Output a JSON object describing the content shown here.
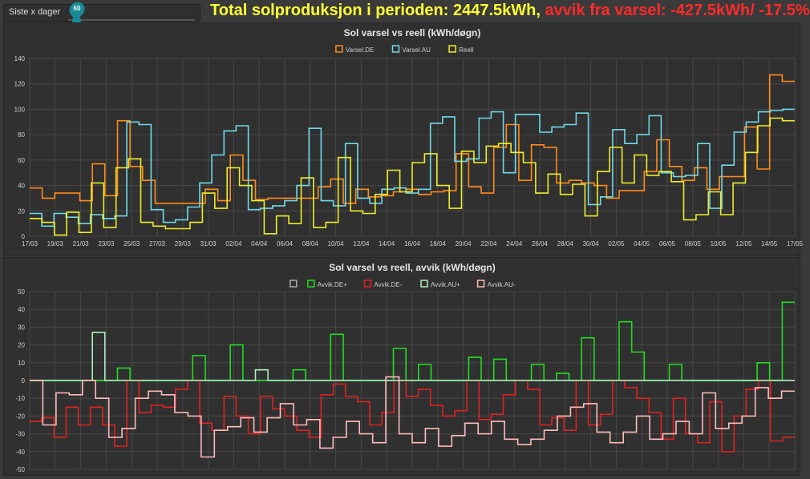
{
  "controls": {
    "period_label": "Siste x dager",
    "period_value": "60"
  },
  "headline": {
    "part1": "Total solproduksjon i perioden: 2447.5kWh,",
    "part2": "avvik fra varsel: -427.5kWh/ -17.5%"
  },
  "chart_data": [
    {
      "type": "line",
      "step": true,
      "title": "Sol varsel vs reell (kWh/døgn)",
      "ylim": [
        0,
        140
      ],
      "yticks": [
        0,
        20,
        40,
        60,
        80,
        100,
        120,
        140
      ],
      "xtick_labels": [
        "17/03",
        "19/03",
        "21/03",
        "23/03",
        "25/03",
        "27/03",
        "29/03",
        "31/03",
        "02/04",
        "04/04",
        "06/04",
        "08/04",
        "10/04",
        "12/04",
        "14/04",
        "16/04",
        "18/04",
        "20/04",
        "22/04",
        "24/04",
        "26/04",
        "28/04",
        "30/04",
        "02/05",
        "04/05",
        "06/05",
        "08/05",
        "10/05",
        "12/05",
        "14/05",
        "17/05"
      ],
      "series": [
        {
          "name": "Varsel.DE",
          "color": "#ff8c1a",
          "values": [
            38,
            30,
            34,
            34,
            28,
            57,
            32,
            91,
            55,
            44,
            26,
            26,
            26,
            26,
            37,
            28,
            64,
            44,
            29,
            30,
            30,
            30,
            30,
            39,
            45,
            26,
            37,
            31,
            32,
            35,
            37,
            33,
            35,
            36,
            65,
            39,
            34,
            70,
            88,
            44,
            72,
            70,
            42,
            44,
            42,
            40,
            30,
            36,
            36,
            51,
            76,
            55,
            44,
            54,
            37,
            47,
            47,
            86,
            53,
            127,
            122
          ]
        },
        {
          "name": "Varsel.AU",
          "color": "#6fd8e8",
          "values": [
            18,
            8,
            18,
            15,
            10,
            17,
            14,
            16,
            90,
            88,
            21,
            11,
            13,
            23,
            42,
            64,
            83,
            87,
            21,
            22,
            24,
            28,
            40,
            85,
            28,
            24,
            73,
            30,
            26,
            37,
            38,
            34,
            37,
            89,
            94,
            59,
            61,
            93,
            98,
            50,
            96,
            96,
            82,
            86,
            88,
            97,
            25,
            31,
            84,
            73,
            80,
            95,
            50,
            47,
            48,
            73,
            22,
            56,
            82,
            90,
            98,
            99,
            100
          ]
        },
        {
          "name": "Reell",
          "color": "#eded2a",
          "values": [
            14,
            11,
            1,
            19,
            3,
            42,
            7,
            54,
            61,
            11,
            8,
            6,
            6,
            11,
            34,
            22,
            54,
            40,
            28,
            2,
            16,
            10,
            46,
            7,
            11,
            62,
            20,
            18,
            33,
            52,
            35,
            58,
            65,
            40,
            22,
            67,
            58,
            71,
            73,
            66,
            58,
            34,
            49,
            33,
            41,
            16,
            51,
            70,
            42,
            64,
            48,
            51,
            43,
            13,
            17,
            35,
            17,
            42,
            66,
            87,
            93,
            91
          ]
        }
      ]
    },
    {
      "type": "line",
      "step": true,
      "title": "Sol varsel vs reell, avvik (kWh/døgn)",
      "ylim": [
        -50,
        50
      ],
      "yticks": [
        -50,
        -40,
        -30,
        -20,
        -10,
        0,
        10,
        20,
        30,
        40,
        50
      ],
      "xtick_labels": [],
      "series": [
        {
          "name": "",
          "color": "#aaaaaa",
          "values": [
            0,
            0,
            0,
            0,
            0,
            0,
            0,
            0,
            0,
            0,
            0,
            0,
            0,
            0,
            0,
            0,
            0,
            0,
            0,
            0,
            0,
            0,
            0,
            0,
            0,
            0,
            0,
            0,
            0,
            0,
            0,
            0,
            0,
            0,
            0,
            0,
            0,
            0,
            0,
            0,
            0,
            0,
            0,
            0,
            0,
            0,
            0,
            0,
            0,
            0,
            0,
            0,
            0,
            0,
            0,
            0,
            0,
            0,
            0,
            0,
            0,
            0
          ]
        },
        {
          "name": "Avvik.DE+",
          "color": "#22dd22",
          "values": [
            0,
            0,
            0,
            0,
            0,
            0,
            0,
            7,
            0,
            0,
            0,
            0,
            0,
            14,
            0,
            0,
            20,
            0,
            0,
            0,
            0,
            6,
            0,
            0,
            26,
            0,
            0,
            0,
            0,
            18,
            0,
            9,
            0,
            0,
            0,
            13,
            0,
            12,
            0,
            0,
            9,
            0,
            4,
            0,
            24,
            0,
            0,
            33,
            16,
            0,
            0,
            9,
            0,
            0,
            0,
            0,
            0,
            0,
            10,
            0,
            44
          ]
        },
        {
          "name": "Avvik.DE-",
          "color": "#dd2222",
          "values": [
            -23,
            -21,
            -32,
            -15,
            -25,
            -15,
            -25,
            -37,
            0,
            -18,
            -14,
            -15,
            -5,
            0,
            -24,
            -28,
            -9,
            -20,
            -30,
            -9,
            -16,
            -20,
            -28,
            -32,
            -8,
            -2,
            -9,
            -12,
            -25,
            -18,
            0,
            -9,
            -5,
            -14,
            -20,
            -17,
            0,
            -22,
            -19,
            -8,
            0,
            -5,
            -25,
            -21,
            -28,
            0,
            -25,
            -19,
            0,
            -4,
            -10,
            -18,
            -33,
            -10,
            -30,
            -35,
            -12,
            -40,
            -20,
            -5,
            0,
            -34,
            -32
          ]
        },
        {
          "name": "Avvik.AU+",
          "color": "#aaeebb",
          "values": [
            0,
            0,
            0,
            0,
            0,
            27,
            0,
            0,
            0,
            0,
            0,
            0,
            0,
            0,
            0,
            0,
            0,
            0,
            6,
            0,
            0,
            0,
            0,
            0,
            0,
            0,
            0,
            0,
            0,
            0,
            0,
            0,
            0,
            0,
            0,
            0,
            0,
            0,
            0,
            0,
            0,
            0,
            0,
            0,
            0,
            0,
            0,
            0,
            0,
            0,
            0,
            0,
            0,
            0,
            0,
            0,
            0,
            0,
            0,
            0,
            0
          ]
        },
        {
          "name": "Avvik.AU-",
          "color": "#ffbcbc",
          "values": [
            0,
            -25,
            -7,
            -8,
            0,
            -10,
            -32,
            -27,
            -10,
            -6,
            -8,
            -18,
            -20,
            -43,
            -28,
            -26,
            -21,
            -29,
            -21,
            -13,
            -25,
            -22,
            -38,
            -32,
            -23,
            -30,
            -35,
            2,
            -30,
            -35,
            -27,
            -37,
            -31,
            -24,
            -30,
            -23,
            -33,
            -36,
            -33,
            -28,
            -20,
            -15,
            -13,
            -29,
            -35,
            -29,
            -20,
            -33,
            -30,
            -23,
            -30,
            -7,
            -27,
            -24,
            -20,
            -4,
            -10,
            -6
          ]
        }
      ]
    }
  ]
}
